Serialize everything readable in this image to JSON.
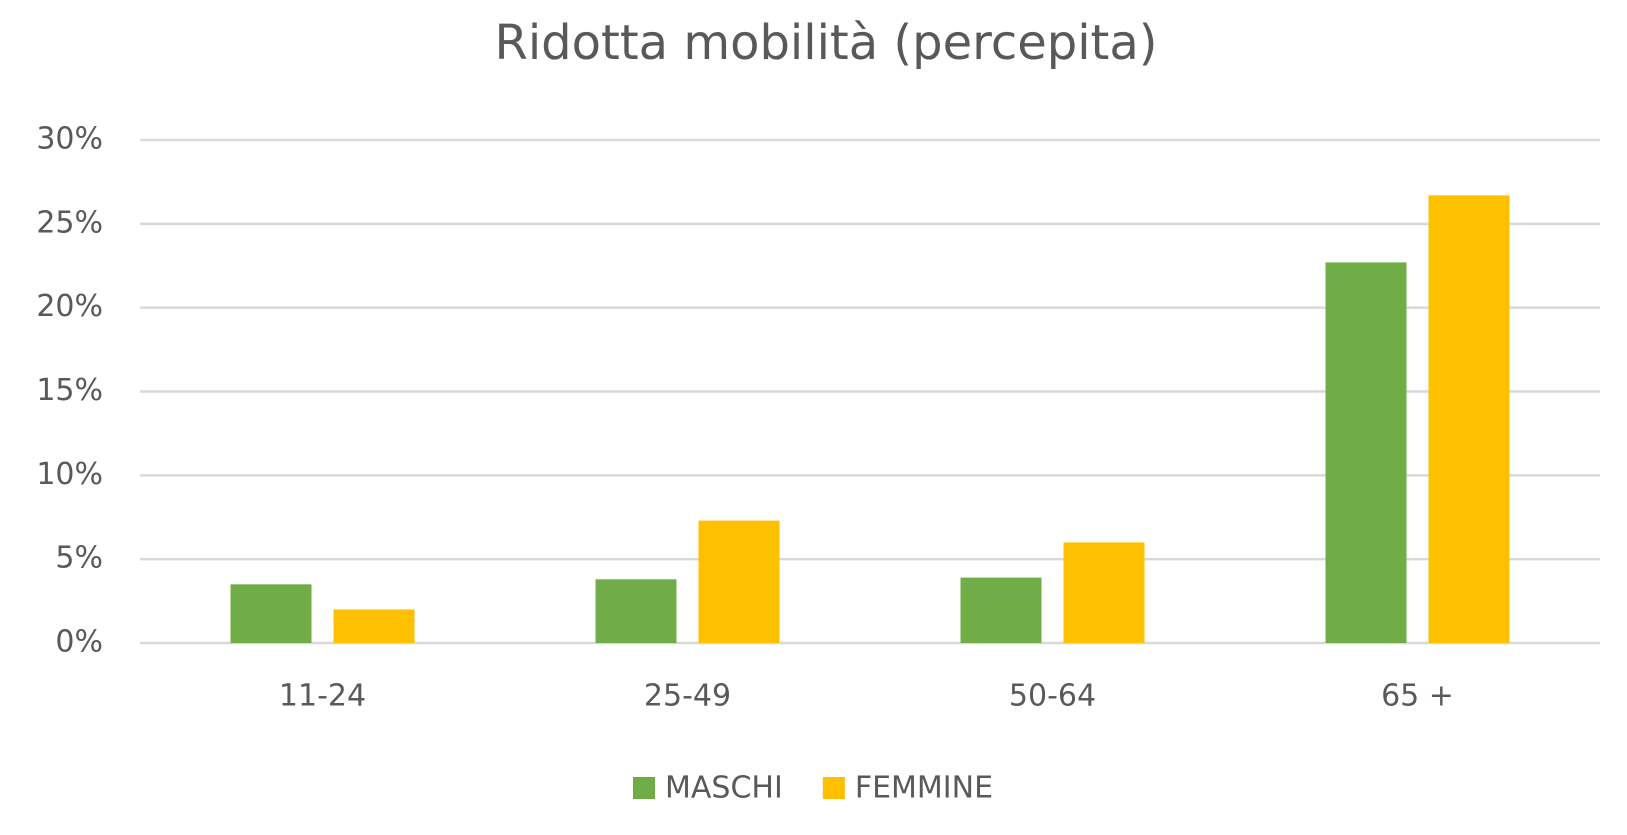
{
  "chart_data": {
    "type": "bar",
    "title": "Ridotta mobilità (percepita)",
    "categories": [
      "11-24",
      "25-49",
      "50-64",
      "65 +"
    ],
    "series": [
      {
        "name": "MASCHI",
        "color": "#70ad47",
        "values": [
          3.5,
          3.8,
          3.9,
          22.7
        ]
      },
      {
        "name": "FEMMINE",
        "color": "#ffc000",
        "values": [
          2.0,
          7.3,
          6.0,
          26.7
        ]
      }
    ],
    "ylim": [
      0,
      30
    ],
    "yticks": [
      {
        "value": 0,
        "label": "0%"
      },
      {
        "value": 5,
        "label": "5%"
      },
      {
        "value": 10,
        "label": "10%"
      },
      {
        "value": 15,
        "label": "15%"
      },
      {
        "value": 20,
        "label": "20%"
      },
      {
        "value": 25,
        "label": "25%"
      },
      {
        "value": 30,
        "label": "30%"
      }
    ],
    "grid": true,
    "legend": "bottom"
  }
}
